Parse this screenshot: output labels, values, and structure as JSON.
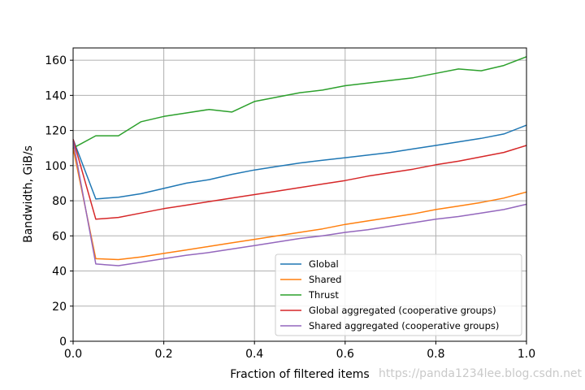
{
  "chart_data": {
    "type": "line",
    "xlabel": "Fraction of filtered items",
    "ylabel": "Bandwidth, GiB/s",
    "xlim": [
      0,
      1
    ],
    "ylim": [
      0,
      167
    ],
    "xticks": [
      0,
      0.2,
      0.4,
      0.6,
      0.8,
      1
    ],
    "xtick_labels": [
      "0.0",
      "0.2",
      "0.4",
      "0.6",
      "0.8",
      "1.0"
    ],
    "yticks": [
      0,
      20,
      40,
      60,
      80,
      100,
      120,
      140,
      160
    ],
    "ytick_labels": [
      "0",
      "20",
      "40",
      "60",
      "80",
      "100",
      "120",
      "140",
      "160"
    ],
    "grid": true,
    "legend_position": "lower-right",
    "x": [
      0,
      0.05,
      0.1,
      0.15,
      0.2,
      0.25,
      0.3,
      0.35,
      0.4,
      0.45,
      0.5,
      0.55,
      0.6,
      0.65,
      0.7,
      0.75,
      0.8,
      0.85,
      0.9,
      0.95,
      1.0
    ],
    "series": [
      {
        "name": "Global",
        "color": "#1f77b4",
        "values": [
          115,
          81,
          82,
          84,
          87,
          90,
          92,
          95,
          97.5,
          99.5,
          101.5,
          103,
          104.5,
          106,
          107.5,
          109.5,
          111.5,
          113.5,
          115.5,
          118,
          123
        ]
      },
      {
        "name": "Shared",
        "color": "#ff7f0e",
        "values": [
          110,
          47,
          46.5,
          48,
          50,
          52,
          54,
          56,
          58,
          60,
          62,
          64,
          66.5,
          68.5,
          70.5,
          72.5,
          75,
          77,
          79,
          81.5,
          85
        ]
      },
      {
        "name": "Thrust",
        "color": "#2ca02c",
        "values": [
          110,
          117,
          117,
          125,
          128,
          130,
          132,
          130.5,
          136.5,
          139,
          141.5,
          143,
          145.5,
          147,
          148.5,
          150,
          152.5,
          155,
          154,
          157,
          162
        ]
      },
      {
        "name": "Global aggregated (cooperative groups)",
        "color": "#d62728",
        "values": [
          115,
          69.5,
          70.5,
          73,
          75.5,
          77.5,
          79.5,
          81.5,
          83.5,
          85.5,
          87.5,
          89.5,
          91.5,
          94,
          96,
          98,
          100.5,
          102.5,
          105,
          107.5,
          111.5
        ]
      },
      {
        "name": "Shared aggregated (cooperative groups)",
        "color": "#9467bd",
        "values": [
          114,
          44,
          43,
          45,
          47,
          49,
          50.5,
          52.5,
          54.5,
          56.5,
          58.5,
          60,
          62,
          63.5,
          65.5,
          67.5,
          69.5,
          71,
          73,
          75,
          78
        ]
      }
    ]
  },
  "watermark": "https://panda1234lee.blog.csdn.net"
}
